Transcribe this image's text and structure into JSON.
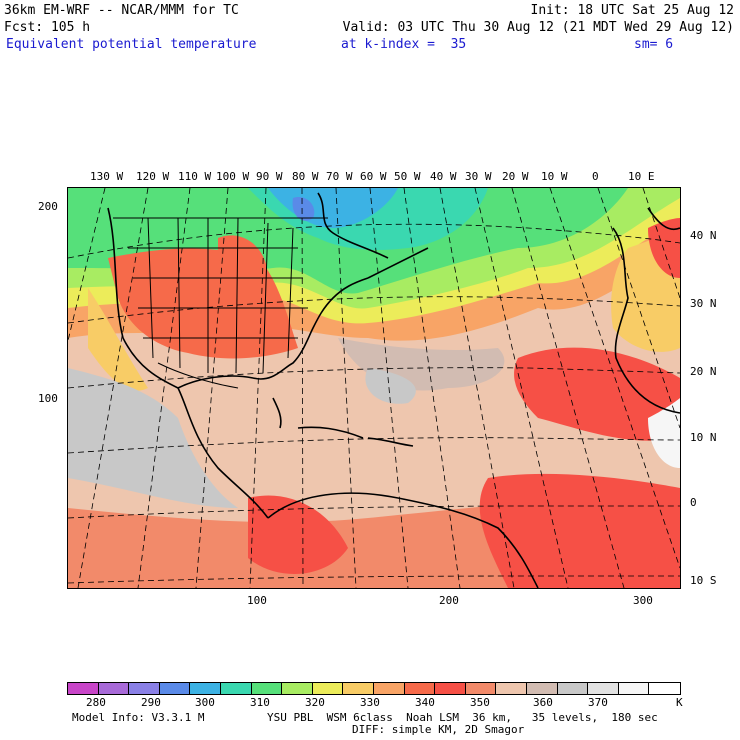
{
  "header": {
    "line1_left": "36km EM-WRF -- NCAR/MMM for TC",
    "line1_right": "Init: 18 UTC Sat 25 Aug 12",
    "line2_left": "Fcst: 105 h",
    "line2_right": "Valid: 03 UTC Thu 30 Aug 12 (21 MDT Wed 29 Aug 12)",
    "line3_field": "Equivalent potential temperature",
    "line3_level": "at k-index =  35",
    "line3_sm": "sm= 6"
  },
  "top_lon_labels": [
    "130 W",
    "120 W",
    "110 W",
    "100 W",
    "90 W",
    "80 W",
    "70 W",
    "60 W",
    "50 W",
    "40 W",
    "30 W",
    "20 W",
    "10 W",
    "0",
    "10 E"
  ],
  "right_lat_labels": [
    "40 N",
    "30 N",
    "20 N",
    "10 N",
    "0",
    "10 S"
  ],
  "left_grid_labels": [
    "200",
    "100"
  ],
  "bottom_grid_labels": [
    "100",
    "200",
    "300"
  ],
  "colorbar": {
    "colors": [
      "#c845c8",
      "#a86ad8",
      "#8a80e6",
      "#5a8ae8",
      "#3cb2e4",
      "#3ad8b0",
      "#56e07a",
      "#a8ec62",
      "#ecec5a",
      "#f8cc66",
      "#f8a466",
      "#f66a4a",
      "#f65046",
      "#f28a6a",
      "#eec6ae",
      "#d2bcb2",
      "#c8c8c8",
      "#e2e2e2",
      "#f6f6f6",
      "#ffffff"
    ],
    "labels": [
      "280",
      "290",
      "300",
      "310",
      "320",
      "330",
      "340",
      "350",
      "360",
      "370"
    ],
    "unit": "K"
  },
  "footer": {
    "model_info": "Model Info: V3.3.1 M",
    "physics": "YSU PBL  WSM 6class  Noah LSM  36 km,   35 levels,  180 sec",
    "diffusion": "DIFF: simple KM, 2D Smagor"
  }
}
